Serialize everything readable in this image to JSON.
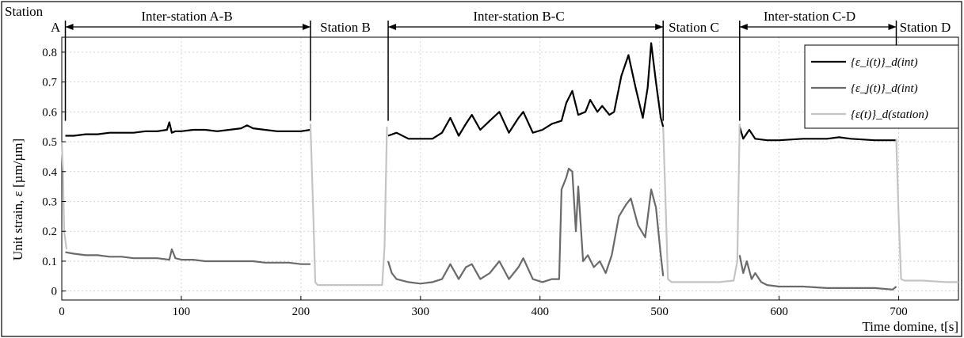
{
  "chart_data": {
    "type": "line",
    "xlabel": "Time domine, t[s]",
    "ylabel": "Unit strain, ε [µm/µm]",
    "xlim": [
      0,
      750
    ],
    "ylim": [
      -0.03,
      0.85
    ],
    "xticks": [
      0,
      100,
      200,
      300,
      400,
      500,
      600,
      700
    ],
    "yticks": [
      0,
      0.1,
      0.2,
      0.3,
      0.4,
      0.5,
      0.6,
      0.7,
      0.8
    ],
    "xtick_labels": [
      "0",
      "100",
      "200",
      "300",
      "400",
      "500",
      "600",
      "700"
    ],
    "ytick_labels": [
      "0",
      "0.1",
      "0.2",
      "0.3",
      "0.4",
      "0.5",
      "0.6",
      "0.7",
      "0.8"
    ],
    "grid": true,
    "legend_position": "top-right",
    "legend": [
      "{ε_i(t)}_d(int)",
      "{ε_j(t)}_d(int)",
      "{ε(t)}_d(station)"
    ],
    "series": [
      {
        "name": "{ε_i(t)}_d(int)",
        "color": "#000000",
        "segments": [
          {
            "x": [
              3,
              10,
              20,
              30,
              40,
              50,
              60,
              70,
              80,
              88,
              90,
              92,
              95,
              100,
              110,
              120,
              130,
              140,
              150,
              155,
              160,
              170,
              180,
              190,
              200,
              208
            ],
            "y": [
              0.52,
              0.52,
              0.525,
              0.525,
              0.53,
              0.53,
              0.53,
              0.535,
              0.535,
              0.54,
              0.565,
              0.53,
              0.535,
              0.535,
              0.54,
              0.54,
              0.535,
              0.54,
              0.545,
              0.555,
              0.545,
              0.54,
              0.535,
              0.535,
              0.535,
              0.54
            ]
          },
          {
            "x": [
              273,
              280,
              290,
              300,
              310,
              318,
              325,
              332,
              338,
              343,
              350,
              358,
              366,
              374,
              382,
              386,
              394,
              402,
              410,
              418,
              422,
              427,
              432,
              438,
              442,
              448,
              452,
              458,
              462,
              468,
              474,
              480,
              486,
              490,
              493,
              497,
              501,
              503
            ],
            "y": [
              0.52,
              0.53,
              0.51,
              0.51,
              0.51,
              0.53,
              0.58,
              0.52,
              0.56,
              0.59,
              0.54,
              0.57,
              0.6,
              0.53,
              0.58,
              0.6,
              0.53,
              0.54,
              0.56,
              0.57,
              0.63,
              0.67,
              0.59,
              0.6,
              0.64,
              0.6,
              0.62,
              0.59,
              0.6,
              0.72,
              0.79,
              0.68,
              0.58,
              0.68,
              0.83,
              0.7,
              0.58,
              0.55
            ]
          },
          {
            "x": [
              567,
              570,
              575,
              580,
              590,
              600,
              620,
              640,
              650,
              660,
              680,
              690,
              698
            ],
            "y": [
              0.55,
              0.51,
              0.54,
              0.51,
              0.505,
              0.505,
              0.51,
              0.51,
              0.515,
              0.51,
              0.505,
              0.505,
              0.505
            ]
          }
        ]
      },
      {
        "name": "{ε_j(t)}_d(int)",
        "color": "#6a6a6a",
        "segments": [
          {
            "x": [
              3,
              10,
              20,
              30,
              40,
              50,
              60,
              70,
              80,
              90,
              92,
              95,
              100,
              110,
              120,
              130,
              140,
              150,
              160,
              170,
              180,
              190,
              200,
              208
            ],
            "y": [
              0.13,
              0.125,
              0.12,
              0.12,
              0.115,
              0.115,
              0.11,
              0.11,
              0.11,
              0.105,
              0.14,
              0.11,
              0.105,
              0.105,
              0.1,
              0.1,
              0.1,
              0.1,
              0.1,
              0.095,
              0.095,
              0.095,
              0.09,
              0.09
            ]
          },
          {
            "x": [
              273,
              276,
              280,
              290,
              300,
              310,
              318,
              325,
              332,
              338,
              343,
              350,
              358,
              366,
              374,
              382,
              386,
              394,
              402,
              410,
              416,
              418,
              422,
              424,
              427,
              430,
              432,
              436,
              440,
              445,
              450,
              455,
              460,
              466,
              472,
              476,
              482,
              488,
              493,
              497,
              501,
              503
            ],
            "y": [
              0.1,
              0.06,
              0.04,
              0.03,
              0.025,
              0.03,
              0.04,
              0.09,
              0.04,
              0.08,
              0.09,
              0.04,
              0.06,
              0.1,
              0.04,
              0.08,
              0.11,
              0.04,
              0.03,
              0.04,
              0.04,
              0.34,
              0.38,
              0.41,
              0.4,
              0.2,
              0.35,
              0.1,
              0.12,
              0.08,
              0.1,
              0.06,
              0.12,
              0.25,
              0.29,
              0.31,
              0.22,
              0.18,
              0.34,
              0.28,
              0.12,
              0.05
            ]
          },
          {
            "x": [
              567,
              570,
              573,
              577,
              580,
              585,
              590,
              600,
              620,
              640,
              660,
              680,
              695,
              698
            ],
            "y": [
              0.12,
              0.06,
              0.1,
              0.04,
              0.06,
              0.03,
              0.02,
              0.015,
              0.015,
              0.01,
              0.01,
              0.01,
              0.005,
              0.015
            ]
          }
        ]
      },
      {
        "name": "{ε(t)}_d(station)",
        "color": "#c4c4c4",
        "segments": [
          {
            "x": [
              0,
              1,
              2,
              3,
              4
            ],
            "y": [
              0.5,
              0.4,
              0.2,
              0.17,
              0.14
            ]
          },
          {
            "x": [
              208,
              210,
              212,
              214,
              230,
              250,
              268,
              270,
              272
            ],
            "y": [
              0.56,
              0.3,
              0.03,
              0.02,
              0.02,
              0.02,
              0.02,
              0.15,
              0.55
            ]
          },
          {
            "x": [
              503,
              505,
              507,
              510,
              530,
              550,
              562,
              565,
              567
            ],
            "y": [
              0.55,
              0.3,
              0.04,
              0.03,
              0.03,
              0.03,
              0.035,
              0.1,
              0.56
            ]
          },
          {
            "x": [
              698,
              700,
              702,
              705,
              720,
              740,
              750
            ],
            "y": [
              0.51,
              0.25,
              0.04,
              0.035,
              0.035,
              0.03,
              0.03
            ]
          }
        ]
      }
    ],
    "annotations": {
      "station_a": [
        "Station",
        "A"
      ],
      "station_b": "Station B",
      "station_c": "Station C",
      "station_d": "Station D",
      "inter_ab": "Inter-station A-B",
      "inter_bc": "Inter-station B-C",
      "inter_cd": "Inter-station C-D"
    },
    "station_boundaries": [
      3,
      208,
      273,
      503,
      567,
      698
    ],
    "inter_station_spans": [
      [
        3,
        208
      ],
      [
        273,
        503
      ],
      [
        567,
        698
      ]
    ]
  }
}
